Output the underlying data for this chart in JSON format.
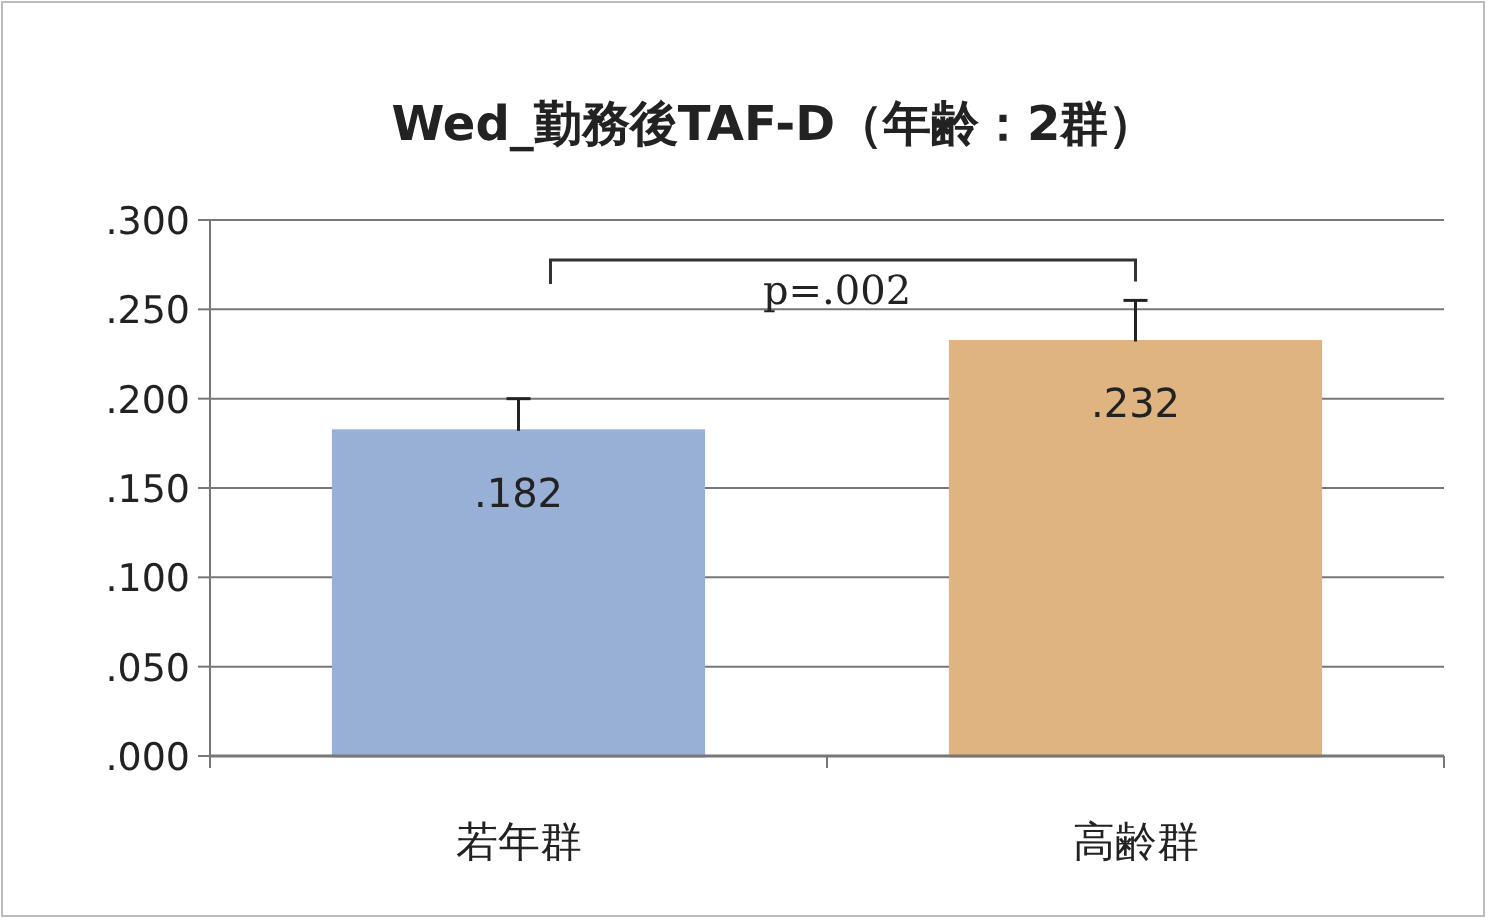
{
  "chart_data": {
    "type": "bar",
    "title": "Wed_勤務後TAF-D（年齢：2群）",
    "categories": [
      "若年群",
      "高齢群"
    ],
    "values": [
      0.182,
      0.232
    ],
    "colors": [
      "#a9c3ee",
      "#f8c88e"
    ],
    "errors": [
      [
        0.182,
        0.2
      ],
      [
        0.232,
        0.255
      ]
    ],
    "value_labels": [
      ".182",
      ".232"
    ],
    "ylim": [
      0,
      0.3
    ],
    "yticks": [
      {
        "value": 0,
        "label": ".000"
      },
      {
        "value": 0.05,
        "label": ".050"
      },
      {
        "value": 0.1,
        "label": ".100"
      },
      {
        "value": 0.15,
        "label": ".150"
      },
      {
        "value": 0.2,
        "label": ".200"
      },
      {
        "value": 0.25,
        "label": ".250"
      },
      {
        "value": 0.3,
        "label": ".300"
      }
    ],
    "grid": "y",
    "annotations": [
      "p=.002"
    ]
  }
}
